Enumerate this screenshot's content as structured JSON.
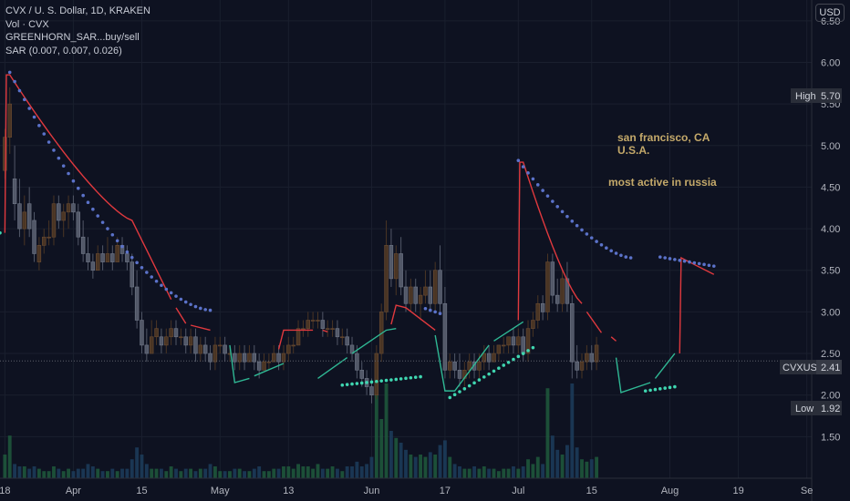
{
  "legend": {
    "symbol_line": "CVX / U. S. Dollar, 1D, KRAKEN",
    "volume": "Vol · CVX",
    "indicator1": "GREENHORN_SAR...buy/sell",
    "indicator2": "SAR (0.007, 0.007, 0.026)"
  },
  "currency_button": "USD",
  "annotations": {
    "line1": "san francisco, CA",
    "line2": "U.S.A.",
    "line3": "most active in russia"
  },
  "price_labels": {
    "high_label": "High",
    "high_value": "5.70",
    "symbol_label": "CVXUSD",
    "symbol_value": "2.41",
    "low_label": "Low",
    "low_value": "1.92"
  },
  "colors": {
    "background": "#0e1221",
    "up_candle": "#4a3524",
    "down_candle": "#525868",
    "sar_dots_above": "#5b72c9",
    "sar_dots_below": "#3fd6b0",
    "line_red": "#e0393e",
    "line_green": "#2fb894",
    "volume_up": "#1f5a3c",
    "volume_down": "#1c3d5c",
    "annotation": "#c4a96a"
  },
  "chart_data": {
    "type": "candlestick",
    "title": "CVX / U. S. Dollar, 1D, KRAKEN",
    "y_axis": {
      "ticks": [
        6.5,
        6.0,
        5.5,
        5.0,
        4.5,
        4.0,
        3.5,
        3.0,
        2.5,
        2.0,
        1.5
      ],
      "tick_labels": [
        "6.50",
        "6.00",
        "5.50",
        "5.00",
        "4.50",
        "4.00",
        "3.50",
        "3.00",
        "2.50",
        "2.00",
        "1.50"
      ],
      "range": [
        1.0,
        6.75
      ]
    },
    "x_axis": {
      "labels": [
        "18",
        "Apr",
        "15",
        "May",
        "13",
        "Jun",
        "17",
        "Jul",
        "15",
        "Aug",
        "19",
        "Se"
      ],
      "label_days": [
        0,
        14,
        28,
        44,
        58,
        75,
        90,
        105,
        120,
        136,
        150,
        164
      ],
      "day_range": [
        -1,
        165
      ]
    },
    "ohlc": [
      [
        4.7,
        5.2,
        4.6,
        5.1
      ],
      [
        5.1,
        5.7,
        4.9,
        5.5
      ],
      [
        4.6,
        5.0,
        4.1,
        4.3
      ],
      [
        4.3,
        4.6,
        3.9,
        4.0
      ],
      [
        4.0,
        4.4,
        3.8,
        4.2
      ],
      [
        4.3,
        4.5,
        3.9,
        4.0
      ],
      [
        4.1,
        4.2,
        3.6,
        3.7
      ],
      [
        3.6,
        3.9,
        3.5,
        3.8
      ],
      [
        3.8,
        4.0,
        3.7,
        3.9
      ],
      [
        3.9,
        4.1,
        3.8,
        3.9
      ],
      [
        3.9,
        4.4,
        3.8,
        4.3
      ],
      [
        4.3,
        4.4,
        4.0,
        4.1
      ],
      [
        4.1,
        4.3,
        3.9,
        4.2
      ],
      [
        4.2,
        4.4,
        4.0,
        4.3
      ],
      [
        4.3,
        4.4,
        4.1,
        4.2
      ],
      [
        4.2,
        4.3,
        3.8,
        3.9
      ],
      [
        3.9,
        4.1,
        3.6,
        3.7
      ],
      [
        3.7,
        3.9,
        3.5,
        3.6
      ],
      [
        3.6,
        3.7,
        3.4,
        3.5
      ],
      [
        3.5,
        3.8,
        3.5,
        3.7
      ],
      [
        3.7,
        3.8,
        3.5,
        3.6
      ],
      [
        3.6,
        3.9,
        3.6,
        3.7
      ],
      [
        3.7,
        3.8,
        3.5,
        3.6
      ],
      [
        3.6,
        3.9,
        3.6,
        3.8
      ],
      [
        3.8,
        3.9,
        3.6,
        3.7
      ],
      [
        3.7,
        3.8,
        3.5,
        3.6
      ],
      [
        3.6,
        3.7,
        3.2,
        3.3
      ],
      [
        3.3,
        3.5,
        2.8,
        2.9
      ],
      [
        2.9,
        3.0,
        2.5,
        2.6
      ],
      [
        2.6,
        2.8,
        2.4,
        2.5
      ],
      [
        2.5,
        2.9,
        2.5,
        2.7
      ],
      [
        2.7,
        2.9,
        2.6,
        2.8
      ],
      [
        2.7,
        2.8,
        2.5,
        2.6
      ],
      [
        2.6,
        2.8,
        2.5,
        2.7
      ],
      [
        2.7,
        2.9,
        2.6,
        2.8
      ],
      [
        2.8,
        2.9,
        2.6,
        2.7
      ],
      [
        2.7,
        2.8,
        2.6,
        2.7
      ],
      [
        2.7,
        2.8,
        2.5,
        2.6
      ],
      [
        2.6,
        2.8,
        2.5,
        2.7
      ],
      [
        2.7,
        2.8,
        2.4,
        2.5
      ],
      [
        2.5,
        2.7,
        2.4,
        2.6
      ],
      [
        2.6,
        2.7,
        2.4,
        2.5
      ],
      [
        2.5,
        2.6,
        2.3,
        2.4
      ],
      [
        2.4,
        2.7,
        2.3,
        2.6
      ],
      [
        2.6,
        2.7,
        2.5,
        2.6
      ],
      [
        2.6,
        2.7,
        2.4,
        2.5
      ],
      [
        2.5,
        2.6,
        2.4,
        2.5
      ],
      [
        2.5,
        2.6,
        2.3,
        2.4
      ],
      [
        2.4,
        2.6,
        2.3,
        2.5
      ],
      [
        2.5,
        2.6,
        2.3,
        2.4
      ],
      [
        2.4,
        2.6,
        2.4,
        2.5
      ],
      [
        2.5,
        2.6,
        2.3,
        2.4
      ],
      [
        2.4,
        2.5,
        2.2,
        2.3
      ],
      [
        2.3,
        2.5,
        2.3,
        2.4
      ],
      [
        2.4,
        2.5,
        2.3,
        2.4
      ],
      [
        2.4,
        2.6,
        2.4,
        2.5
      ],
      [
        2.5,
        2.6,
        2.3,
        2.4
      ],
      [
        2.4,
        2.6,
        2.3,
        2.5
      ],
      [
        2.5,
        2.7,
        2.4,
        2.6
      ],
      [
        2.6,
        2.7,
        2.5,
        2.6
      ],
      [
        2.6,
        2.9,
        2.6,
        2.8
      ],
      [
        2.8,
        2.9,
        2.7,
        2.8
      ],
      [
        2.8,
        3.0,
        2.7,
        2.9
      ],
      [
        2.9,
        3.0,
        2.8,
        2.9
      ],
      [
        2.9,
        3.0,
        2.8,
        2.9
      ],
      [
        2.9,
        3.0,
        2.7,
        2.8
      ],
      [
        2.8,
        2.9,
        2.7,
        2.8
      ],
      [
        2.8,
        2.9,
        2.7,
        2.8
      ],
      [
        2.8,
        2.9,
        2.6,
        2.7
      ],
      [
        2.7,
        2.8,
        2.6,
        2.7
      ],
      [
        2.7,
        2.8,
        2.5,
        2.6
      ],
      [
        2.6,
        2.7,
        2.4,
        2.5
      ],
      [
        2.5,
        2.6,
        2.2,
        2.3
      ],
      [
        2.3,
        2.4,
        2.1,
        2.2
      ],
      [
        2.2,
        2.3,
        2.0,
        2.1
      ],
      [
        2.1,
        2.2,
        1.9,
        2.0
      ],
      [
        2.0,
        2.6,
        1.95,
        2.5
      ],
      [
        2.5,
        3.1,
        2.4,
        3.0
      ],
      [
        3.0,
        4.1,
        2.9,
        3.8
      ],
      [
        3.8,
        4.0,
        3.3,
        3.4
      ],
      [
        3.4,
        3.8,
        3.2,
        3.7
      ],
      [
        3.7,
        3.9,
        3.2,
        3.3
      ],
      [
        3.3,
        3.5,
        3.0,
        3.1
      ],
      [
        3.1,
        3.4,
        3.0,
        3.3
      ],
      [
        3.3,
        3.4,
        3.0,
        3.1
      ],
      [
        3.1,
        3.3,
        2.9,
        3.2
      ],
      [
        3.2,
        3.5,
        3.1,
        3.3
      ],
      [
        3.3,
        3.5,
        3.0,
        3.1
      ],
      [
        3.1,
        3.6,
        3.0,
        3.5
      ],
      [
        3.5,
        3.8,
        3.0,
        3.1
      ],
      [
        3.1,
        3.3,
        2.2,
        2.3
      ],
      [
        2.3,
        2.5,
        2.2,
        2.4
      ],
      [
        2.4,
        2.5,
        2.2,
        2.3
      ],
      [
        2.3,
        2.5,
        2.1,
        2.2
      ],
      [
        2.2,
        2.4,
        2.1,
        2.3
      ],
      [
        2.3,
        2.5,
        2.2,
        2.4
      ],
      [
        2.4,
        2.5,
        2.2,
        2.3
      ],
      [
        2.3,
        2.5,
        2.2,
        2.4
      ],
      [
        2.4,
        2.6,
        2.3,
        2.5
      ],
      [
        2.5,
        2.6,
        2.3,
        2.4
      ],
      [
        2.4,
        2.6,
        2.4,
        2.5
      ],
      [
        2.5,
        2.6,
        2.4,
        2.6
      ],
      [
        2.6,
        2.7,
        2.5,
        2.6
      ],
      [
        2.6,
        2.7,
        2.5,
        2.7
      ],
      [
        2.7,
        2.8,
        2.5,
        2.6
      ],
      [
        2.6,
        2.8,
        2.5,
        2.7
      ],
      [
        2.7,
        2.8,
        2.4,
        2.5
      ],
      [
        2.5,
        2.9,
        2.4,
        2.8
      ],
      [
        2.8,
        3.0,
        2.7,
        2.9
      ],
      [
        2.9,
        3.2,
        2.8,
        3.1
      ],
      [
        3.1,
        3.2,
        2.9,
        3.0
      ],
      [
        3.0,
        3.7,
        2.9,
        3.6
      ],
      [
        3.6,
        3.7,
        3.1,
        3.2
      ],
      [
        3.2,
        3.4,
        3.0,
        3.1
      ],
      [
        3.1,
        3.5,
        3.0,
        3.4
      ],
      [
        3.4,
        3.6,
        3.0,
        3.1
      ],
      [
        3.1,
        3.2,
        2.2,
        2.4
      ],
      [
        2.4,
        2.6,
        2.2,
        2.3
      ],
      [
        2.3,
        2.5,
        2.2,
        2.4
      ],
      [
        2.4,
        2.6,
        2.3,
        2.5
      ],
      [
        2.5,
        2.6,
        2.3,
        2.4
      ],
      [
        2.4,
        2.7,
        2.3,
        2.6
      ]
    ],
    "volume": [
      0.1,
      0.18,
      0.06,
      0.05,
      0.05,
      0.04,
      0.05,
      0.04,
      0.03,
      0.03,
      0.05,
      0.04,
      0.03,
      0.04,
      0.03,
      0.04,
      0.04,
      0.06,
      0.05,
      0.04,
      0.03,
      0.03,
      0.04,
      0.03,
      0.04,
      0.04,
      0.08,
      0.13,
      0.1,
      0.06,
      0.04,
      0.04,
      0.04,
      0.03,
      0.05,
      0.04,
      0.03,
      0.04,
      0.04,
      0.03,
      0.04,
      0.04,
      0.06,
      0.05,
      0.03,
      0.03,
      0.03,
      0.04,
      0.04,
      0.03,
      0.03,
      0.04,
      0.05,
      0.03,
      0.03,
      0.04,
      0.04,
      0.05,
      0.05,
      0.04,
      0.06,
      0.05,
      0.05,
      0.04,
      0.06,
      0.04,
      0.04,
      0.05,
      0.04,
      0.03,
      0.05,
      0.05,
      0.07,
      0.05,
      0.06,
      0.09,
      0.36,
      0.25,
      0.4,
      0.2,
      0.17,
      0.15,
      0.12,
      0.1,
      0.09,
      0.1,
      0.09,
      0.11,
      0.1,
      0.14,
      0.16,
      0.09,
      0.06,
      0.05,
      0.04,
      0.04,
      0.05,
      0.04,
      0.05,
      0.04,
      0.04,
      0.03,
      0.04,
      0.04,
      0.05,
      0.04,
      0.05,
      0.08,
      0.06,
      0.09,
      0.06,
      0.38,
      0.18,
      0.12,
      0.1,
      0.14,
      0.4,
      0.13,
      0.08,
      0.07,
      0.08,
      0.09
    ]
  }
}
